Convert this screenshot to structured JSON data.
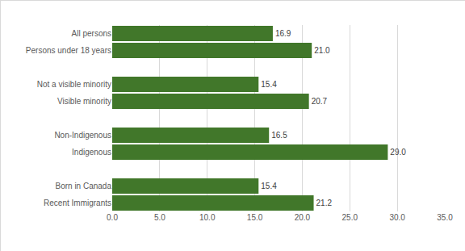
{
  "chart_data": {
    "type": "bar",
    "orientation": "horizontal",
    "categories": [
      "All persons",
      "Persons under 18 years",
      null,
      "Not a visible minority",
      "Visible minority",
      null,
      "Non-Indigenous",
      "Indigenous",
      null,
      "Born in Canada",
      "Recent Immigrants"
    ],
    "values": [
      16.9,
      21.0,
      null,
      15.4,
      20.7,
      null,
      16.5,
      29.0,
      null,
      15.4,
      21.2
    ],
    "value_labels": [
      "16.9",
      "21.0",
      null,
      "15.4",
      "20.7",
      null,
      "16.5",
      "29.0",
      null,
      "15.4",
      "21.2"
    ],
    "color": "#41772a",
    "xlim": [
      0,
      35
    ],
    "xticks": [
      {
        "value": 0,
        "label": "0.0"
      },
      {
        "value": 5,
        "label": "5.0"
      },
      {
        "value": 10,
        "label": "10.0"
      },
      {
        "value": 15,
        "label": "15.0"
      },
      {
        "value": 20,
        "label": "20.0"
      },
      {
        "value": 25,
        "label": "25.0"
      },
      {
        "value": 30,
        "label": "30.0"
      },
      {
        "value": 35,
        "label": "35.0"
      }
    ],
    "grid": true,
    "data_labels": true
  }
}
